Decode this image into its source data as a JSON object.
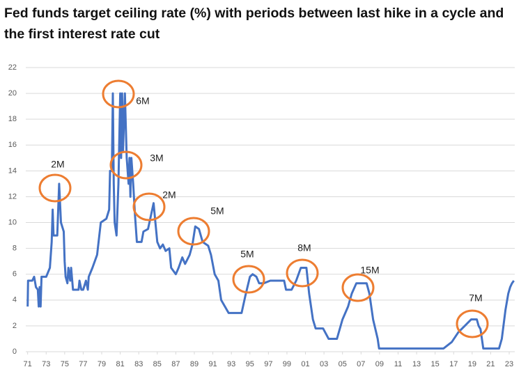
{
  "chart_data": {
    "type": "line",
    "title": "Fed funds target ceiling rate (%) with periods between last hike in a cycle and the first interest rate cut",
    "color": "#4472c4",
    "x": [
      1971.0,
      1971.05,
      1971.5,
      1971.7,
      1971.9,
      1972.1,
      1972.2,
      1972.3,
      1972.4,
      1972.5,
      1973.0,
      1973.4,
      1973.6,
      1973.7,
      1973.8,
      1974.0,
      1974.2,
      1974.4,
      1974.6,
      1974.9,
      1975.0,
      1975.1,
      1975.3,
      1975.4,
      1975.6,
      1975.7,
      1975.9,
      1976.5,
      1976.6,
      1976.8,
      1977.0,
      1977.3,
      1977.5,
      1977.6,
      1978.0,
      1978.5,
      1978.9,
      1979.5,
      1979.8,
      1979.9,
      1980.1,
      1980.2,
      1980.3,
      1980.4,
      1980.6,
      1980.8,
      1981.0,
      1981.1,
      1981.2,
      1981.3,
      1981.5,
      1981.7,
      1981.9,
      1982.0,
      1982.1,
      1982.2,
      1982.4,
      1982.6,
      1982.8,
      1983.3,
      1983.5,
      1984.0,
      1984.3,
      1984.6,
      1984.8,
      1985.0,
      1985.3,
      1985.6,
      1985.9,
      1986.3,
      1986.5,
      1987.0,
      1987.3,
      1987.7,
      1988.0,
      1988.5,
      1988.8,
      1989.1,
      1989.5,
      1989.9,
      1990.5,
      1990.8,
      1991.2,
      1991.6,
      1991.9,
      1992.3,
      1992.7,
      1993.5,
      1994.1,
      1994.5,
      1995.0,
      1995.3,
      1995.7,
      1996.0,
      1996.5,
      1997.2,
      1998.7,
      1998.9,
      1999.5,
      2000.0,
      2000.5,
      2001.1,
      2001.4,
      2001.8,
      2002.1,
      2002.9,
      2003.5,
      2004.4,
      2005.0,
      2005.6,
      2006.0,
      2006.5,
      2007.6,
      2007.9,
      2008.3,
      2008.8,
      2008.95,
      2015.9,
      2016.8,
      2017.5,
      2018.2,
      2018.9,
      2019.5,
      2019.7,
      2019.9,
      2020.2,
      2021.9,
      2022.2,
      2022.6,
      2022.9,
      2023.1,
      2023.3,
      2023.5
    ],
    "values": [
      3.5,
      5.5,
      5.5,
      5.8,
      5,
      4.8,
      3.5,
      5.0,
      3.5,
      5.8,
      5.8,
      6.5,
      8.5,
      11,
      9,
      9,
      9,
      13,
      10,
      9.3,
      7,
      5.8,
      5.3,
      6.5,
      5.5,
      6.5,
      4.8,
      4.8,
      5.5,
      4.8,
      4.8,
      5.5,
      4.8,
      5.8,
      6.5,
      7.5,
      10,
      10.3,
      11,
      14,
      14,
      20,
      13,
      10,
      9,
      13,
      20,
      15,
      20,
      15.5,
      20,
      15,
      13,
      15,
      12,
      15,
      13,
      10.5,
      8.5,
      8.5,
      9.3,
      9.5,
      10.5,
      11.5,
      10,
      8.5,
      8,
      8.3,
      7.8,
      8,
      6.5,
      6,
      6.5,
      7.3,
      6.8,
      7.5,
      8.3,
      9.7,
      9.5,
      8.5,
      8.2,
      7.5,
      6,
      5.5,
      4,
      3.5,
      3,
      3,
      3,
      4.3,
      5.8,
      6,
      5.8,
      5.3,
      5.3,
      5.5,
      5.5,
      4.8,
      4.8,
      5.5,
      6.5,
      6.5,
      4.5,
      2.5,
      1.8,
      1.8,
      1.0,
      1.0,
      2.5,
      3.5,
      4.5,
      5.3,
      5.3,
      4.5,
      2.5,
      1.0,
      0.25,
      0.25,
      0.75,
      1.5,
      2.0,
      2.5,
      2.5,
      2.0,
      1.75,
      0.25,
      0.25,
      1.0,
      3.25,
      4.5,
      5.0,
      5.3,
      5.5
    ],
    "xlim": [
      1970.8,
      2023.6
    ],
    "ylim": [
      0,
      22
    ],
    "yticks": [
      0,
      2,
      4,
      6,
      8,
      10,
      12,
      14,
      16,
      18,
      20,
      22
    ],
    "xticks": [
      {
        "value": 1971,
        "label": "71"
      },
      {
        "value": 1973,
        "label": "73"
      },
      {
        "value": 1975,
        "label": "75"
      },
      {
        "value": 1977,
        "label": "77"
      },
      {
        "value": 1979,
        "label": "79"
      },
      {
        "value": 1981,
        "label": "81"
      },
      {
        "value": 1983,
        "label": "83"
      },
      {
        "value": 1985,
        "label": "85"
      },
      {
        "value": 1987,
        "label": "87"
      },
      {
        "value": 1989,
        "label": "89"
      },
      {
        "value": 1991,
        "label": "91"
      },
      {
        "value": 1993,
        "label": "93"
      },
      {
        "value": 1995,
        "label": "95"
      },
      {
        "value": 1997,
        "label": "97"
      },
      {
        "value": 1999,
        "label": "99"
      },
      {
        "value": 2001,
        "label": "01"
      },
      {
        "value": 2003,
        "label": "03"
      },
      {
        "value": 2005,
        "label": "05"
      },
      {
        "value": 2007,
        "label": "07"
      },
      {
        "value": 2009,
        "label": "09"
      },
      {
        "value": 2011,
        "label": "11"
      },
      {
        "value": 2013,
        "label": "13"
      },
      {
        "value": 2015,
        "label": "15"
      },
      {
        "value": 2017,
        "label": "17"
      },
      {
        "value": 2019,
        "label": "19"
      },
      {
        "value": 2021,
        "label": "21"
      },
      {
        "value": 2023,
        "label": "23"
      }
    ],
    "grid": true,
    "annotations": [
      "2M",
      "6M",
      "3M",
      "2M",
      "5M",
      "5M",
      "8M",
      "15M",
      "7M"
    ]
  }
}
